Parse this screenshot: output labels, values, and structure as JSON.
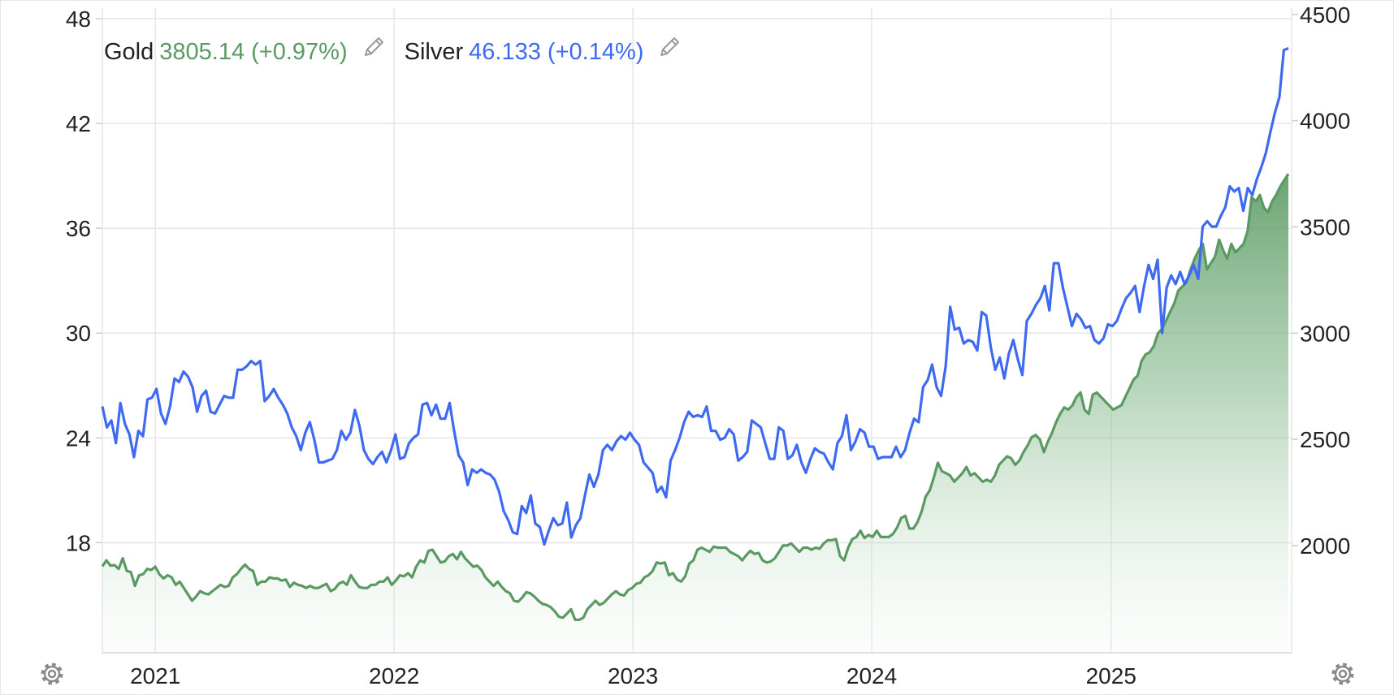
{
  "legend": {
    "gold_label": "Gold",
    "gold_value": "3805.14 (+0.97%)",
    "silver_label": "Silver",
    "silver_value": "46.133 (+0.14%)"
  },
  "colors": {
    "gold": "#5a9a62",
    "silver": "#3e6af2",
    "grid": "#e6e6e6",
    "text": "#222222",
    "icon": "#9a9a9a"
  },
  "icons": [
    "edit-pencil-icon",
    "edit-pencil-icon",
    "gear-icon",
    "gear-icon"
  ],
  "chart_data": {
    "type": "line",
    "x_start": "2020-10-12",
    "x_end": "2025-09-29",
    "x_tick_labels": [
      "2021",
      "2022",
      "2023",
      "2024",
      "2025"
    ],
    "left_axis": {
      "series": "Silver",
      "ticks": [
        "48",
        "42",
        "36",
        "30",
        "24",
        "18"
      ],
      "ylim": [
        11.7,
        48.6
      ]
    },
    "right_axis": {
      "series": "Gold",
      "ticks": [
        "4500",
        "4000",
        "3500",
        "3000",
        "2500",
        "2000"
      ],
      "ylim": [
        1495,
        4530
      ]
    },
    "grid": true,
    "series": [
      {
        "name": "Silver",
        "axis": "left",
        "style": "line",
        "values": [
          25.8,
          24.6,
          25.0,
          23.7,
          26.0,
          24.8,
          24.2,
          22.9,
          24.4,
          24.1,
          26.2,
          26.3,
          26.8,
          25.4,
          24.8,
          25.8,
          27.4,
          27.2,
          27.8,
          27.5,
          26.9,
          25.5,
          26.4,
          26.7,
          25.5,
          25.4,
          25.9,
          26.4,
          26.3,
          26.3,
          27.9,
          27.9,
          28.1,
          28.4,
          28.2,
          28.4,
          26.1,
          26.4,
          26.8,
          26.3,
          25.9,
          25.4,
          24.6,
          24.1,
          23.3,
          24.3,
          24.9,
          23.9,
          22.6,
          22.6,
          22.7,
          22.8,
          23.3,
          24.4,
          23.9,
          24.3,
          25.6,
          24.7,
          23.3,
          22.8,
          22.5,
          22.9,
          23.2,
          22.6,
          23.3,
          24.2,
          22.8,
          22.9,
          23.7,
          24.0,
          24.2,
          25.9,
          26.0,
          25.3,
          25.9,
          25.1,
          25.1,
          26.0,
          24.4,
          23.0,
          22.6,
          21.3,
          22.2,
          22.0,
          22.2,
          22.0,
          21.9,
          21.6,
          20.9,
          19.8,
          19.3,
          18.6,
          18.5,
          20.1,
          19.7,
          20.7,
          19.1,
          18.9,
          17.9,
          18.7,
          19.4,
          19.0,
          19.1,
          20.3,
          18.3,
          19.0,
          19.4,
          20.7,
          21.9,
          21.2,
          21.9,
          23.3,
          23.6,
          23.3,
          23.8,
          24.1,
          23.9,
          24.3,
          23.9,
          23.6,
          22.6,
          22.3,
          22.0,
          20.9,
          21.2,
          20.6,
          22.7,
          23.3,
          24.0,
          24.9,
          25.5,
          25.2,
          25.3,
          25.2,
          25.8,
          24.4,
          24.4,
          23.9,
          24.0,
          24.5,
          24.2,
          22.7,
          22.9,
          23.2,
          25.0,
          24.8,
          24.6,
          23.7,
          22.8,
          22.8,
          24.6,
          24.4,
          22.8,
          23.0,
          23.6,
          22.6,
          22.0,
          22.8,
          23.4,
          23.2,
          23.1,
          22.6,
          22.2,
          23.7,
          24.1,
          25.3,
          23.3,
          23.8,
          24.5,
          24.3,
          23.5,
          23.5,
          22.8,
          22.9,
          22.9,
          22.9,
          23.5,
          22.9,
          23.3,
          24.3,
          25.1,
          24.9,
          26.9,
          27.3,
          28.2,
          26.9,
          26.4,
          28.1,
          31.5,
          30.2,
          30.3,
          29.4,
          29.6,
          29.5,
          29.0,
          31.2,
          31.0,
          29.2,
          27.9,
          28.6,
          27.4,
          28.8,
          29.6,
          28.5,
          27.6,
          30.7,
          31.1,
          31.6,
          32.0,
          32.7,
          31.3,
          34.0,
          34.0,
          32.6,
          31.5,
          30.4,
          31.1,
          30.8,
          30.3,
          30.4,
          29.6,
          29.4,
          29.7,
          30.5,
          30.4,
          30.7,
          31.4,
          32.0,
          32.3,
          32.7,
          31.2,
          32.7,
          33.9,
          33.1,
          34.2,
          30.0,
          32.6,
          33.3,
          32.8,
          33.5,
          32.8,
          33.3,
          33.9,
          33.1,
          36.1,
          36.4,
          36.1,
          36.1,
          36.7,
          37.2,
          38.4,
          38.1,
          38.3,
          37.0,
          38.3,
          37.9,
          38.8,
          39.5,
          40.3,
          41.5,
          42.6,
          43.5,
          46.2,
          46.3
        ]
      },
      {
        "name": "Gold",
        "axis": "right",
        "style": "area",
        "values": [
          1902,
          1930,
          1905,
          1908,
          1890,
          1940,
          1880,
          1875,
          1810,
          1860,
          1865,
          1890,
          1885,
          1900,
          1865,
          1845,
          1860,
          1850,
          1815,
          1830,
          1800,
          1770,
          1740,
          1760,
          1785,
          1775,
          1770,
          1785,
          1800,
          1815,
          1805,
          1810,
          1850,
          1865,
          1890,
          1910,
          1890,
          1880,
          1815,
          1830,
          1830,
          1850,
          1845,
          1845,
          1835,
          1840,
          1805,
          1825,
          1815,
          1810,
          1800,
          1810,
          1800,
          1800,
          1810,
          1820,
          1785,
          1795,
          1820,
          1830,
          1815,
          1860,
          1830,
          1805,
          1800,
          1800,
          1815,
          1815,
          1830,
          1830,
          1850,
          1815,
          1835,
          1860,
          1855,
          1870,
          1850,
          1900,
          1930,
          1920,
          1975,
          1980,
          1950,
          1920,
          1925,
          1950,
          1960,
          1935,
          1970,
          1940,
          1920,
          1900,
          1905,
          1885,
          1850,
          1830,
          1810,
          1830,
          1805,
          1785,
          1775,
          1740,
          1735,
          1755,
          1780,
          1775,
          1760,
          1740,
          1725,
          1720,
          1710,
          1690,
          1665,
          1660,
          1680,
          1700,
          1650,
          1650,
          1660,
          1700,
          1720,
          1740,
          1720,
          1730,
          1750,
          1770,
          1785,
          1770,
          1765,
          1790,
          1800,
          1820,
          1825,
          1850,
          1860,
          1880,
          1920,
          1915,
          1920,
          1860,
          1870,
          1840,
          1830,
          1855,
          1915,
          1930,
          1980,
          1990,
          1980,
          1970,
          1995,
          1990,
          1990,
          1990,
          1970,
          1960,
          1950,
          1930,
          1955,
          1975,
          1960,
          1965,
          1930,
          1920,
          1925,
          1940,
          1970,
          2000,
          2000,
          2010,
          1990,
          1970,
          1990,
          1990,
          1980,
          1990,
          1985,
          2010,
          2025,
          2025,
          2030,
          1950,
          1930,
          1990,
          2030,
          2040,
          2070,
          2035,
          2050,
          2040,
          2070,
          2040,
          2040,
          2040,
          2055,
          2085,
          2130,
          2140,
          2080,
          2080,
          2110,
          2160,
          2230,
          2260,
          2320,
          2390,
          2350,
          2340,
          2330,
          2300,
          2320,
          2340,
          2370,
          2330,
          2340,
          2320,
          2300,
          2310,
          2300,
          2330,
          2380,
          2400,
          2420,
          2410,
          2380,
          2400,
          2440,
          2470,
          2510,
          2520,
          2500,
          2440,
          2490,
          2530,
          2580,
          2620,
          2650,
          2640,
          2660,
          2700,
          2720,
          2640,
          2620,
          2710,
          2720,
          2700,
          2680,
          2660,
          2640,
          2650,
          2660,
          2700,
          2740,
          2780,
          2800,
          2870,
          2900,
          2910,
          2940,
          3000,
          3020,
          3060,
          3100,
          3140,
          3200,
          3220,
          3240,
          3300,
          3350,
          3390,
          3420,
          3300,
          3330,
          3360,
          3440,
          3390,
          3350,
          3420,
          3380,
          3400,
          3420,
          3480,
          3640,
          3620,
          3650,
          3590,
          3570,
          3620,
          3650,
          3690,
          3720,
          3750
        ]
      }
    ]
  }
}
